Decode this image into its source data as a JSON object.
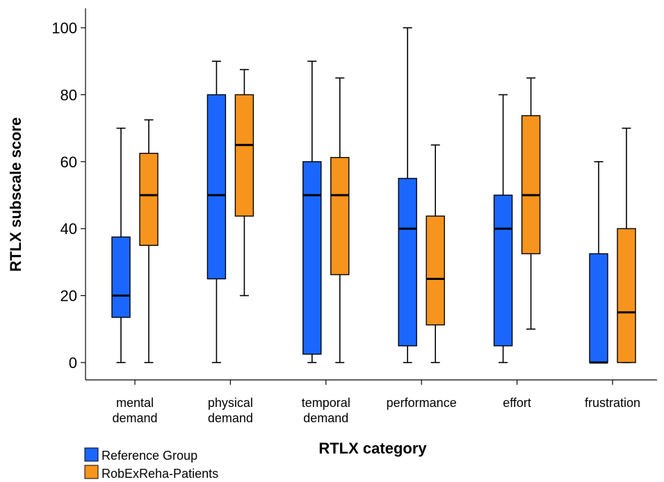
{
  "chart_data": {
    "type": "boxplot",
    "xlabel": "RTLX category",
    "ylabel": "RTLX subscale score",
    "ylim": [
      0,
      100
    ],
    "yticks": [
      0,
      20,
      40,
      60,
      80,
      100
    ],
    "grid": false,
    "legend_position": "bottom-left",
    "categories": [
      [
        "mental",
        "demand"
      ],
      [
        "physical",
        "demand"
      ],
      [
        "temporal",
        "demand"
      ],
      [
        "performance"
      ],
      [
        "effort"
      ],
      [
        "frustration"
      ]
    ],
    "series": [
      {
        "name": "Reference Group",
        "color": "#1a66ff",
        "boxes": [
          {
            "min": 0,
            "q1": 13.5,
            "median": 20,
            "q3": 37.5,
            "max": 70
          },
          {
            "min": 0,
            "q1": 25,
            "median": 50,
            "q3": 80,
            "max": 90
          },
          {
            "min": 0,
            "q1": 2.5,
            "median": 50,
            "q3": 60,
            "max": 90
          },
          {
            "min": 0,
            "q1": 5,
            "median": 40,
            "q3": 55,
            "max": 100
          },
          {
            "min": 0,
            "q1": 5,
            "median": 40,
            "q3": 50,
            "max": 80
          },
          {
            "min": 0,
            "q1": 0,
            "median": 0,
            "q3": 32.5,
            "max": 60
          }
        ]
      },
      {
        "name": "RobExReha-Patients",
        "color": "#f7941d",
        "boxes": [
          {
            "min": 0,
            "q1": 35,
            "median": 50,
            "q3": 62.5,
            "max": 72.5
          },
          {
            "min": 20,
            "q1": 43.75,
            "median": 65,
            "q3": 80,
            "max": 87.5
          },
          {
            "min": 0,
            "q1": 26.25,
            "median": 50,
            "q3": 61.25,
            "max": 85
          },
          {
            "min": 0,
            "q1": 11.25,
            "median": 25,
            "q3": 43.75,
            "max": 65
          },
          {
            "min": 10,
            "q1": 32.5,
            "median": 50,
            "q3": 73.75,
            "max": 85
          },
          {
            "min": 0,
            "q1": 0,
            "median": 15,
            "q3": 40,
            "max": 70
          }
        ]
      }
    ]
  }
}
